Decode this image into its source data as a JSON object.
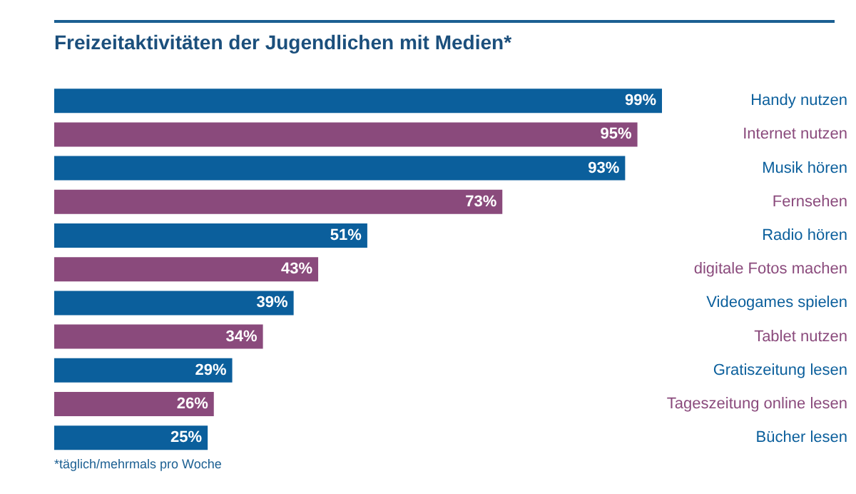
{
  "chart_data": {
    "type": "bar",
    "orientation": "horizontal",
    "title": "Freizeitaktivitäten der Jugendlichen mit Medien*",
    "categories": [
      "Handy nutzen",
      "Internet nutzen",
      "Musik hören",
      "Fernsehen",
      "Radio hören",
      "digitale Fotos machen",
      "Videogames spielen",
      "Tablet nutzen",
      "Gratiszeitung lesen",
      "Tageszeitung online lesen",
      "Bücher lesen"
    ],
    "values": [
      99,
      95,
      93,
      73,
      51,
      43,
      39,
      34,
      29,
      26,
      25
    ],
    "value_labels": [
      "99%",
      "95%",
      "93%",
      "73%",
      "51%",
      "43%",
      "39%",
      "34%",
      "29%",
      "26%",
      "25%"
    ],
    "colors": [
      "#0b5f9c",
      "#8a4a7c",
      "#0b5f9c",
      "#8a4a7c",
      "#0b5f9c",
      "#8a4a7c",
      "#0b5f9c",
      "#8a4a7c",
      "#0b5f9c",
      "#8a4a7c",
      "#0b5f9c"
    ],
    "grid": false,
    "legend": false,
    "annotations": [
      "*täglich/mehrmals pro Woche"
    ]
  }
}
